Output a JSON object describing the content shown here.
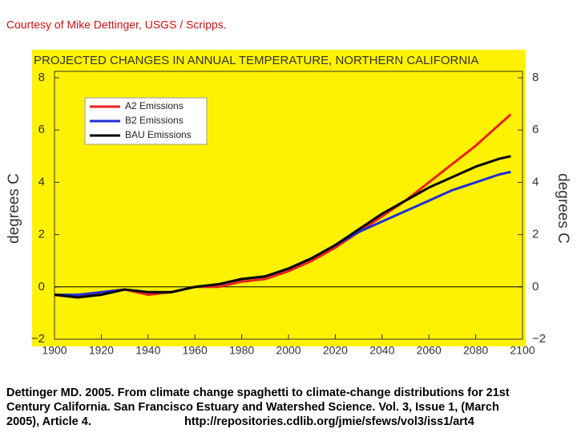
{
  "header": "Courtesy of Mike Dettinger, USGS / Scripps.",
  "chart_data": {
    "type": "line",
    "title": "PROJECTED CHANGES IN ANNUAL TEMPERATURE, NORTHERN CALIFORNIA",
    "ylabel": "degrees C",
    "y2label": "degrees C",
    "x": [
      1900,
      1910,
      1920,
      1930,
      1940,
      1950,
      1960,
      1970,
      1980,
      1990,
      2000,
      2010,
      2020,
      2030,
      2040,
      2050,
      2060,
      2070,
      2080,
      2090,
      2095
    ],
    "series": [
      {
        "name": "A2 Emissions",
        "color": "#e8231e",
        "values": [
          -0.3,
          -0.4,
          -0.2,
          -0.1,
          -0.3,
          -0.2,
          0.0,
          0.0,
          0.2,
          0.3,
          0.6,
          1.0,
          1.5,
          2.1,
          2.7,
          3.3,
          4.0,
          4.7,
          5.4,
          6.2,
          6.6
        ]
      },
      {
        "name": "B2 Emissions",
        "color": "#1f2fd6",
        "values": [
          -0.3,
          -0.3,
          -0.2,
          -0.1,
          -0.2,
          -0.2,
          0.0,
          0.1,
          0.3,
          0.4,
          0.7,
          1.1,
          1.6,
          2.1,
          2.5,
          2.9,
          3.3,
          3.7,
          4.0,
          4.3,
          4.4
        ]
      },
      {
        "name": "BAU Emissions",
        "color": "#000000",
        "values": [
          -0.3,
          -0.4,
          -0.3,
          -0.1,
          -0.2,
          -0.2,
          0.0,
          0.1,
          0.3,
          0.4,
          0.7,
          1.1,
          1.6,
          2.2,
          2.8,
          3.3,
          3.8,
          4.2,
          4.6,
          4.9,
          5.0
        ]
      }
    ],
    "xlim": [
      1900,
      2100
    ],
    "xticks": [
      1900,
      1920,
      1940,
      1960,
      1980,
      2000,
      2020,
      2040,
      2060,
      2080,
      2100
    ],
    "ylim": [
      -2,
      8
    ],
    "yticks": [
      {
        "value": -2,
        "label": "−2"
      },
      0,
      2,
      4,
      6,
      8
    ],
    "y2lim": [
      -2,
      8
    ],
    "y2ticks": [
      {
        "value": -2,
        "label": "−2"
      },
      0,
      2,
      4,
      6,
      8
    ],
    "zero_line": true,
    "legend": "upper left",
    "background": "#fff200"
  },
  "caption": [
    "Dettinger MD. 2005. From climate change spaghetti to climate-change distributions for 21st",
    "Century California. San Francisco Estuary and Watershed Science. Vol. 3, Issue 1, (March",
    "2005), Article 4."
  ],
  "url": "http://repositories.cdlib.org/jmie/sfews/vol3/iss1/art4"
}
